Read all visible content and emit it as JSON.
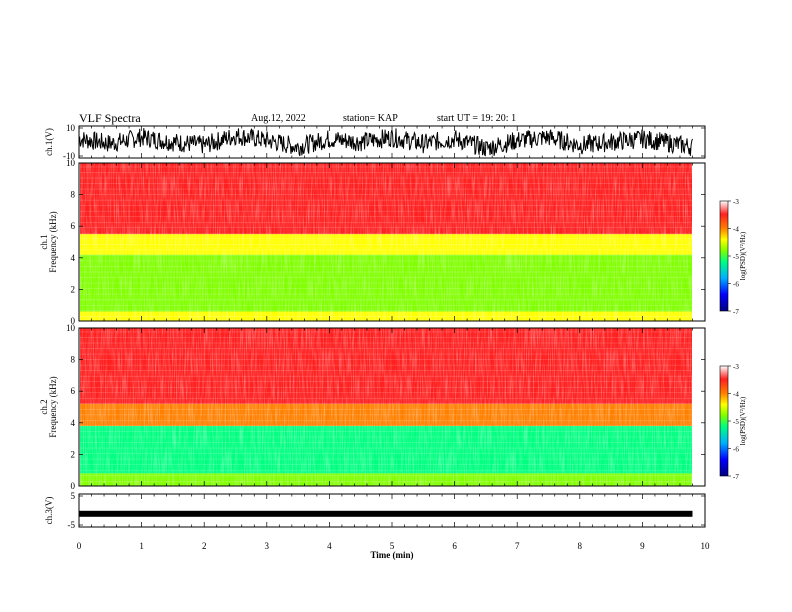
{
  "header": {
    "title": "VLF Spectra",
    "date": "Aug.12, 2022",
    "station": "station= KAP",
    "start": "start  UT =   19: 20: 1"
  },
  "chart_data": [
    {
      "type": "line",
      "panel": "ch1-waveform",
      "ylabel": "ch.1(V)",
      "ylim": [
        -10,
        10
      ],
      "yticks": [
        "10",
        "-10"
      ],
      "x": [
        0,
        0.5,
        1,
        1.5,
        2,
        2.5,
        3,
        3.5,
        4,
        4.5,
        5,
        5.5,
        6,
        6.5,
        7,
        7.5,
        8,
        8.5,
        9,
        9.5,
        9.8
      ],
      "values": [
        2,
        -1,
        3,
        0,
        -2,
        4,
        1,
        -3,
        2,
        0,
        3,
        -1,
        2,
        -4,
        1,
        3,
        -2,
        0,
        2,
        -1,
        -3
      ],
      "color": "#000000"
    },
    {
      "type": "heatmap",
      "panel": "ch1-spectrogram",
      "ylabel": "ch.1\nFrequency (kHz)",
      "ylim": [
        0,
        10
      ],
      "yticks": [
        "0",
        "2",
        "4",
        "6",
        "8",
        "10"
      ],
      "colorbar": {
        "label": "log(PSD)(V²/Hz)",
        "range": [
          -7,
          -3
        ],
        "ticks": [
          "-3",
          "-4",
          "-5",
          "-6",
          "-7"
        ]
      },
      "bands": [
        {
          "from_khz": 0.0,
          "to_khz": 0.6,
          "level": -4.3
        },
        {
          "from_khz": 0.6,
          "to_khz": 1.3,
          "level": -4.8
        },
        {
          "from_khz": 1.3,
          "to_khz": 4.2,
          "level": -5.2
        },
        {
          "from_khz": 4.2,
          "to_khz": 5.5,
          "level": -4.3
        },
        {
          "from_khz": 5.5,
          "to_khz": 10.0,
          "level": -3.7
        }
      ]
    },
    {
      "type": "heatmap",
      "panel": "ch2-spectrogram",
      "ylabel": "ch.2\nFrequency (kHz)",
      "ylim": [
        0,
        10
      ],
      "yticks": [
        "0",
        "2",
        "4",
        "6",
        "8",
        "10"
      ],
      "colorbar": {
        "label": "log(PSD)(V²/Hz)",
        "range": [
          -7,
          -3
        ],
        "ticks": [
          "-3",
          "-4",
          "-5",
          "-6",
          "-7"
        ]
      },
      "bands": [
        {
          "from_khz": 0.0,
          "to_khz": 0.8,
          "level": -5.0
        },
        {
          "from_khz": 0.8,
          "to_khz": 3.8,
          "level": -5.4
        },
        {
          "from_khz": 3.8,
          "to_khz": 5.2,
          "level": -4.2
        },
        {
          "from_khz": 5.2,
          "to_khz": 10.0,
          "level": -3.6
        }
      ]
    },
    {
      "type": "line",
      "panel": "ch3-waveform",
      "ylabel": "ch.3(V)",
      "ylim": [
        -5,
        5
      ],
      "yticks": [
        "5",
        "-5"
      ],
      "x": [
        0,
        9.8
      ],
      "values": [
        -1,
        -1
      ],
      "color": "#000000"
    }
  ],
  "xaxis": {
    "label": "Time (min)",
    "range": [
      0,
      10
    ],
    "ticks": [
      "0",
      "1",
      "2",
      "3",
      "4",
      "5",
      "6",
      "7",
      "8",
      "9",
      "10"
    ]
  },
  "colors": {
    "scale": [
      "#000080",
      "#0000ff",
      "#00b0ff",
      "#00ff80",
      "#80ff00",
      "#ffff00",
      "#ff8000",
      "#ff2020",
      "#ffffff"
    ]
  }
}
